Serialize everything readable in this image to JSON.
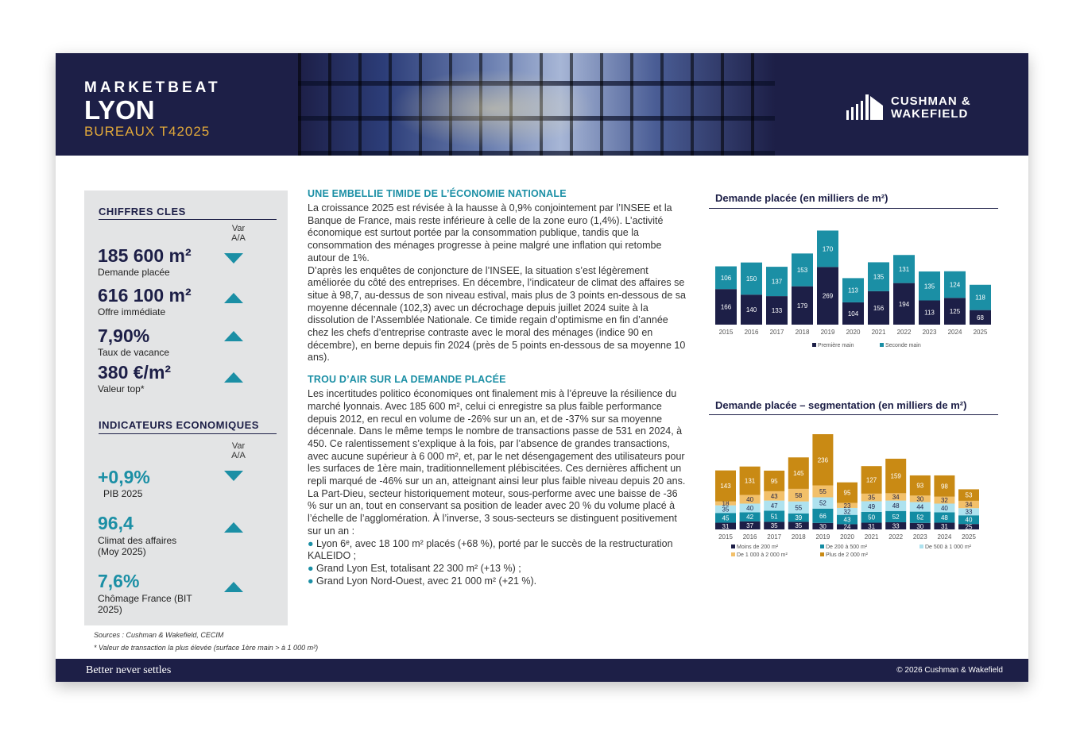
{
  "header": {
    "title": "MARKETBEAT",
    "city": "LYON",
    "subtitle": "BUREAUX T42025",
    "logo_line1": "CUSHMAN &",
    "logo_line2": "WAKEFIELD"
  },
  "key_figures": {
    "title": "CHIFFRES CLES",
    "var_label_1": "Var",
    "var_label_2": "A/A",
    "items": [
      {
        "value": "185 600 m²",
        "label": "Demande placée",
        "trend": "down"
      },
      {
        "value": "616 100 m²",
        "label": "Offre immédiate",
        "trend": "up"
      },
      {
        "value": "7,90%",
        "label": "Taux de vacance",
        "trend": "up"
      },
      {
        "value": "380 €/m²",
        "label": "Valeur top*",
        "trend": "up"
      }
    ]
  },
  "economic_indicators": {
    "title": "INDICATEURS ECONOMIQUES",
    "var_label_1": "Var",
    "var_label_2": "A/A",
    "items": [
      {
        "value": "+0,9%",
        "label": "PIB 2025",
        "label2": "",
        "trend": "down"
      },
      {
        "value": "96,4",
        "label": "Climat des affaires",
        "label2": "(Moy 2025)",
        "trend": "up"
      },
      {
        "value": "7,6%",
        "label": "Chômage France (BIT",
        "label2": "2025)",
        "trend": "up"
      }
    ]
  },
  "sources": {
    "line1": "Sources : Cushman & Wakefield, CECIM",
    "line2": "* Valeur de transaction la plus élevée (surface 1ère main > à 1 000 m²)"
  },
  "article": {
    "heading1": "UNE EMBELLIE TIMIDE DE L’ÉCONOMIE NATIONALE",
    "p1": "La croissance 2025 est révisée à la hausse à 0,9% conjointement par l’INSEE et la Banque de France, mais reste inférieure à celle de la zone euro (1,4%). L’activité économique est surtout portée par la consommation publique, tandis que la consommation des ménages progresse à peine malgré une inflation qui retombe autour de 1%.",
    "p2": "D’après les enquêtes de conjoncture de l’INSEE, la situation s’est légèrement améliorée du côté des entreprises. En décembre, l’indicateur de climat des affaires se situe à 98,7, au-dessus de son niveau estival, mais plus de 3 points en-dessous de sa moyenne décennale (102,3) avec un décrochage depuis juillet 2024 suite à la dissolution de l’Assemblée Nationale. Ce timide regain d’optimisme en fin d’année chez les chefs d’entreprise contraste avec le moral des ménages (indice 90 en décembre), en berne depuis fin 2024 (près de 5 points en-dessous de sa moyenne 10 ans).",
    "heading2": "TROU D’AIR SUR LA DEMANDE PLACÉE",
    "p3": "Les incertitudes politico économiques ont finalement mis à l’épreuve la résilience du marché lyonnais. Avec 185 600 m², celui ci enregistre sa plus faible performance depuis 2012, en recul en volume de -26% sur un an, et de -37% sur sa moyenne décennale. Dans le même temps le nombre de transactions passe de 531 en 2024, à 450. Ce ralentissement s’explique à la fois, par l’absence de grandes transactions, avec aucune supérieur à 6 000 m², et, par le net désengagement des utilisateurs pour les surfaces de 1ère main, traditionnellement plébiscitées. Ces dernières affichent un repli marqué de -46% sur un an, atteignant ainsi leur plus faible niveau depuis 20 ans.",
    "p4": "La Part-Dieu, secteur historiquement moteur, sous-performe avec une baisse de -36 % sur un an, tout en conservant sa position de leader avec 20 % du volume placé à l’échelle de l’agglomération. À l’inverse, 3 sous-secteurs se distinguent positivement sur un an :",
    "bullets": [
      "Lyon 6ᵉ, avec 18 100 m² placés (+68 %), porté par le succès de la restructuration KALEIDO ;",
      "Grand Lyon Est, totalisant 22 300 m² (+13 %) ;",
      "Grand Lyon Nord-Ouest, avec 21 000 m² (+21 %)."
    ]
  },
  "colors": {
    "navy": "#1d1f47",
    "teal": "#1b8fa5",
    "gold": "#e2a93a",
    "seg_small": "#1d1f47",
    "seg_200_500": "#138ca3",
    "seg_500_1000": "#aee2ef",
    "seg_1000_2000": "#f2c06a",
    "seg_2000_plus": "#c98a14"
  },
  "chart_data": [
    {
      "type": "bar",
      "stacked": true,
      "title": "Demande placée (en milliers de m²)",
      "categories": [
        "2015",
        "2016",
        "2017",
        "2018",
        "2019",
        "2020",
        "2021",
        "2022",
        "2023",
        "2024",
        "2025"
      ],
      "series": [
        {
          "name": "Première main",
          "values": [
            166,
            140,
            133,
            179,
            269,
            104,
            156,
            194,
            113,
            125,
            68
          ]
        },
        {
          "name": "Seconde main",
          "values": [
            106,
            150,
            137,
            153,
            170,
            113,
            135,
            131,
            135,
            124,
            118
          ]
        }
      ],
      "legend": "bottom"
    },
    {
      "type": "bar",
      "stacked": true,
      "title": "Demande placée – segmentation (en milliers de m²)",
      "categories": [
        "2015",
        "2016",
        "2017",
        "2018",
        "2019",
        "2020",
        "2021",
        "2022",
        "2023",
        "2024",
        "2025"
      ],
      "series": [
        {
          "name": "Moins de 200 m²",
          "values": [
            31,
            37,
            35,
            35,
            30,
            24,
            31,
            33,
            30,
            31,
            25
          ]
        },
        {
          "name": "De 200 à 500 m²",
          "values": [
            45,
            42,
            51,
            39,
            66,
            43,
            50,
            52,
            52,
            48,
            40
          ]
        },
        {
          "name": "De 500 à 1 000 m²",
          "values": [
            35,
            40,
            47,
            55,
            52,
            32,
            49,
            48,
            44,
            40,
            33
          ]
        },
        {
          "name": "De 1 000 à 2 000 m²",
          "values": [
            18,
            40,
            43,
            58,
            55,
            23,
            35,
            34,
            30,
            32,
            34
          ]
        },
        {
          "name": "Plus de 2 000 m²",
          "values": [
            143,
            131,
            95,
            145,
            236,
            95,
            127,
            159,
            93,
            98,
            53
          ]
        }
      ],
      "legend": "bottom"
    }
  ],
  "footer": {
    "tagline": "Better never settles",
    "copyright": "© 2026 Cushman & Wakefield"
  }
}
